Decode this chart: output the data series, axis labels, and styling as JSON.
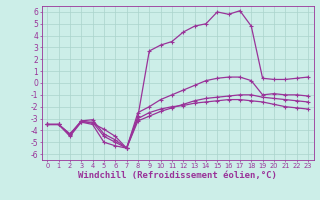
{
  "bg_color": "#cceee8",
  "grid_color": "#aad4cc",
  "line_color": "#993399",
  "marker": "+",
  "markersize": 3.5,
  "linewidth": 0.9,
  "xlabel": "Windchill (Refroidissement éolien,°C)",
  "xlabel_fontsize": 6.5,
  "ylabel_ticks": [
    -6,
    -5,
    -4,
    -3,
    -2,
    -1,
    0,
    1,
    2,
    3,
    4,
    5,
    6
  ],
  "xtick_labels": [
    "0",
    "1",
    "2",
    "3",
    "4",
    "5",
    "6",
    "7",
    "8",
    "9",
    "10",
    "11",
    "12",
    "13",
    "14",
    "15",
    "16",
    "17",
    "18",
    "19",
    "20",
    "21",
    "22",
    "23"
  ],
  "xlim": [
    -0.5,
    23.5
  ],
  "ylim": [
    -6.5,
    6.5
  ],
  "lines": [
    {
      "x": [
        0,
        1,
        2,
        3,
        4,
        5,
        6,
        7,
        8,
        9,
        10,
        11,
        12,
        13,
        14,
        15,
        16,
        17,
        18,
        19,
        20,
        21,
        22,
        23
      ],
      "y": [
        -3.5,
        -3.5,
        -4.5,
        -3.3,
        -3.5,
        -5.0,
        -5.3,
        -5.5,
        -3.0,
        -2.5,
        -2.2,
        -2.0,
        -1.9,
        -1.7,
        -1.6,
        -1.5,
        -1.4,
        -1.4,
        -1.5,
        -1.6,
        -1.8,
        -2.0,
        -2.1,
        -2.2
      ]
    },
    {
      "x": [
        0,
        1,
        2,
        3,
        4,
        5,
        6,
        7,
        8,
        9,
        10,
        11,
        12,
        13,
        14,
        15,
        16,
        17,
        18,
        19,
        20,
        21,
        22,
        23
      ],
      "y": [
        -3.5,
        -3.5,
        -4.4,
        -3.2,
        -3.1,
        -4.3,
        -4.8,
        -5.5,
        -2.5,
        -2.0,
        -1.4,
        -1.0,
        -0.6,
        -0.2,
        0.2,
        0.4,
        0.5,
        0.5,
        0.2,
        -1.0,
        -0.9,
        -1.0,
        -1.0,
        -1.1
      ]
    },
    {
      "x": [
        0,
        1,
        2,
        3,
        4,
        5,
        6,
        7,
        8,
        9,
        10,
        11,
        12,
        13,
        14,
        15,
        16,
        17,
        18,
        19,
        20,
        21,
        22,
        23
      ],
      "y": [
        -3.5,
        -3.5,
        -4.3,
        -3.2,
        -3.4,
        -3.9,
        -4.5,
        -5.5,
        -2.8,
        2.7,
        3.2,
        3.5,
        4.3,
        4.8,
        5.0,
        6.0,
        5.8,
        6.1,
        4.8,
        0.4,
        0.3,
        0.3,
        0.4,
        0.5
      ]
    },
    {
      "x": [
        0,
        1,
        2,
        3,
        4,
        5,
        6,
        7,
        8,
        9,
        10,
        11,
        12,
        13,
        14,
        15,
        16,
        17,
        18,
        19,
        20,
        21,
        22,
        23
      ],
      "y": [
        -3.5,
        -3.5,
        -4.3,
        -3.3,
        -3.3,
        -4.5,
        -5.0,
        -5.5,
        -3.2,
        -2.8,
        -2.4,
        -2.1,
        -1.8,
        -1.5,
        -1.3,
        -1.2,
        -1.1,
        -1.0,
        -1.0,
        -1.2,
        -1.3,
        -1.4,
        -1.5,
        -1.6
      ]
    }
  ]
}
